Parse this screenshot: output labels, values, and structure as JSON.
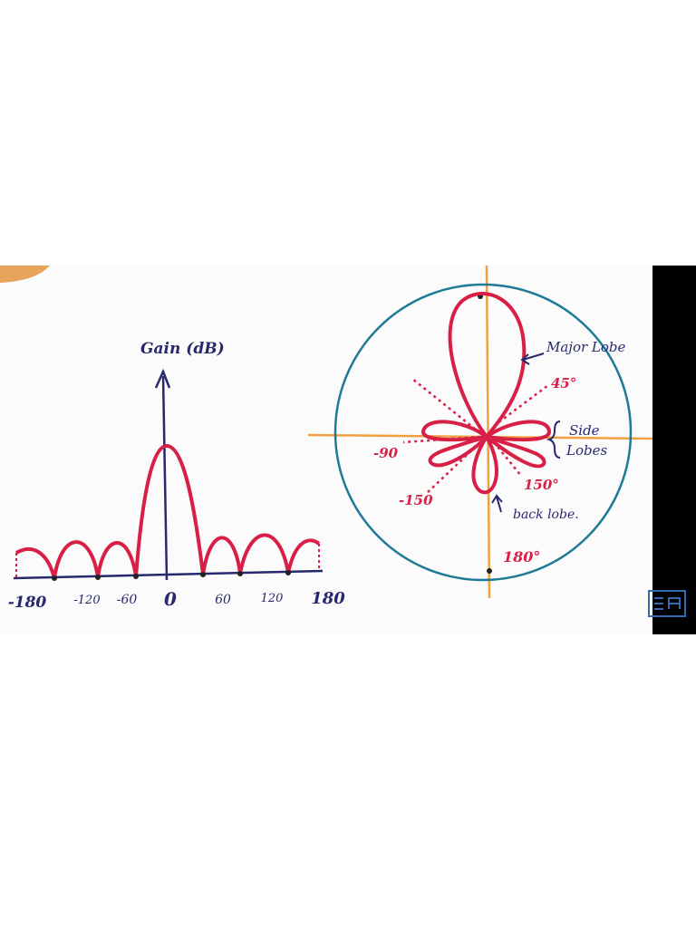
{
  "rectangular_plot": {
    "y_axis_label": "Gain (dB)",
    "x_axis_labels": [
      "-180",
      "-120",
      "-60",
      "0",
      "60",
      "120",
      "180"
    ]
  },
  "polar_plot": {
    "major_lobe_label": "Major Lobe",
    "side_lobes_label": [
      "Side",
      "Lobes"
    ],
    "back_lobe_label": "back lobe.",
    "angle_labels": [
      "45°",
      "-90",
      "-150",
      "150°",
      "180°"
    ]
  }
}
